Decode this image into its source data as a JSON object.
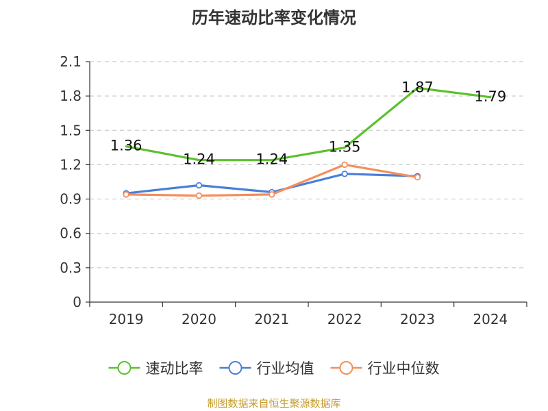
{
  "chart_data": {
    "type": "line",
    "title": "历年速动比率变化情况",
    "categories": [
      "2019",
      "2020",
      "2021",
      "2022",
      "2023",
      "2024"
    ],
    "y_ticks": [
      "0",
      "0.3",
      "0.6",
      "0.9",
      "1.2",
      "1.5",
      "1.8",
      "2.1"
    ],
    "ylim": [
      0,
      2.1
    ],
    "grid": true,
    "legend_position": "bottom",
    "series": [
      {
        "name": "速动比率",
        "color": "#5cc12c",
        "values": [
          1.36,
          1.24,
          1.24,
          1.35,
          1.87,
          1.79
        ],
        "labels": [
          "1.36",
          "1.24",
          "1.24",
          "1.35",
          "1.87",
          "1.79"
        ],
        "markers": false
      },
      {
        "name": "行业均值",
        "color": "#4a7fd8",
        "values": [
          0.95,
          1.02,
          0.96,
          1.12,
          1.1,
          null
        ],
        "markers": true
      },
      {
        "name": "行业中位数",
        "color": "#f58e5c",
        "values": [
          0.94,
          0.93,
          0.94,
          1.2,
          1.09,
          null
        ],
        "markers": true
      }
    ]
  },
  "source_note": "制图数据来自恒生聚源数据库"
}
